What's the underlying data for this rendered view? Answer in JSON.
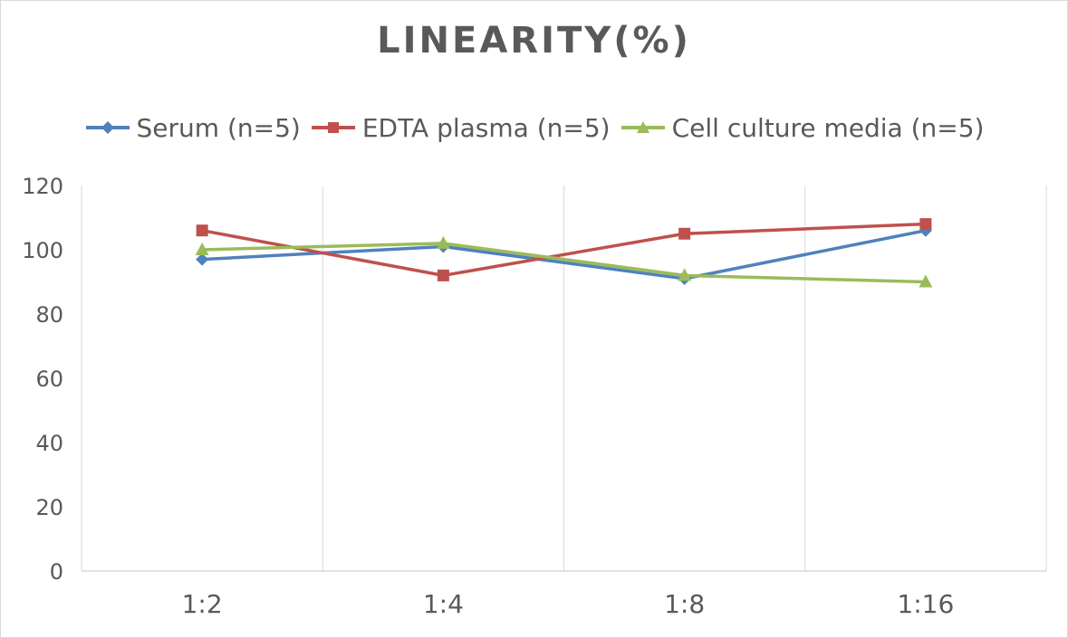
{
  "chart_data": {
    "type": "line",
    "title": "LINEARITY(%)",
    "categories": [
      "1:2",
      "1:4",
      "1:8",
      "1:16"
    ],
    "ylim": [
      0,
      120
    ],
    "yticks": [
      0,
      20,
      40,
      60,
      80,
      100,
      120
    ],
    "grid": "vertical",
    "legend": "top",
    "series": [
      {
        "name": "Serum (n=5)",
        "values": [
          97,
          101,
          91,
          106
        ],
        "color": "#4f81bd",
        "marker": "diamond"
      },
      {
        "name": "EDTA plasma (n=5)",
        "values": [
          106,
          92,
          105,
          108
        ],
        "color": "#c0504d",
        "marker": "square"
      },
      {
        "name": "Cell culture media (n=5)",
        "values": [
          100,
          102,
          92,
          90
        ],
        "color": "#9bbb59",
        "marker": "triangle"
      }
    ]
  }
}
